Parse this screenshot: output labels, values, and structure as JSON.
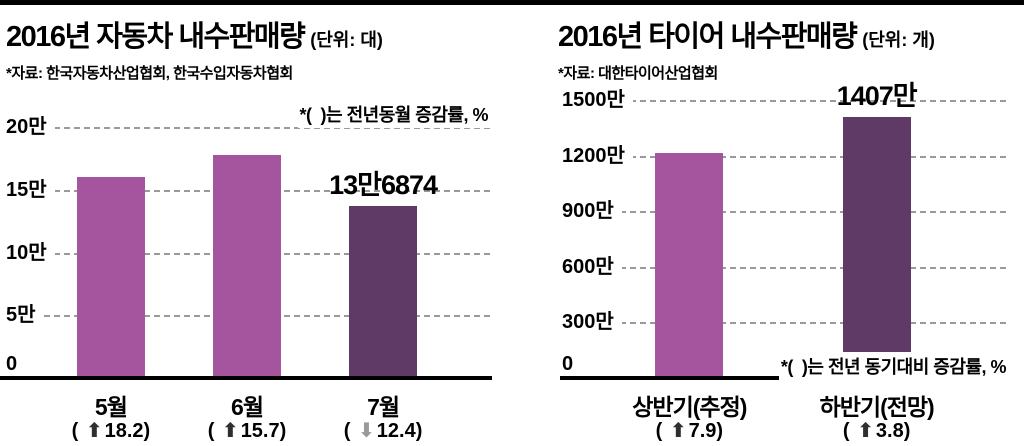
{
  "arrows": {
    "up": "⬆",
    "down": "⬇"
  },
  "colors": {
    "bar_light": "#a4559e",
    "bar_dark": "#603a66",
    "grid_line": "#9a9a9a",
    "axis_line": "#000000",
    "up_arrow": "#2f2f2f",
    "down_arrow": "#9a9a9a"
  },
  "chart_data": [
    {
      "type": "bar",
      "title": "2016년 자동차 내수판매량",
      "unit": "(단위: 대)",
      "source": "*자료: 한국자동차산업협회, 한국수입자동차협회",
      "note": "*(  )는 전년동월 증감률, %",
      "note_placement": "top-right",
      "categories": [
        "5월",
        "6월",
        "7월"
      ],
      "values": [
        160000,
        178000,
        136874
      ],
      "bar_value_labels": [
        "",
        "",
        "13만6874"
      ],
      "bar_colors": [
        "#a4559e",
        "#a4559e",
        "#603a66"
      ],
      "change_labels": [
        {
          "arrow": "up",
          "value": "18.2"
        },
        {
          "arrow": "up",
          "value": "15.7"
        },
        {
          "arrow": "down",
          "value": "12.4"
        }
      ],
      "y_ticks": [
        {
          "value": 200000,
          "label": "20만"
        },
        {
          "value": 150000,
          "label": "15만"
        },
        {
          "value": 100000,
          "label": "10만"
        },
        {
          "value": 50000,
          "label": "5만"
        },
        {
          "value": 0,
          "label": "0"
        }
      ],
      "ylim": [
        0,
        200000
      ],
      "grid": "horizontal-dashed",
      "legend": "none"
    },
    {
      "type": "bar",
      "title": "2016년 타이어 내수판매량",
      "unit": "(단위: 개)",
      "source": "*자료: 대한타이어산업협회",
      "note": "*(  )는 전년 동기대비 증감률, %",
      "note_placement": "bottom-right",
      "categories": [
        "상반기(추정)",
        "하반기(전망)"
      ],
      "values": [
        12150000,
        14070000
      ],
      "bar_value_labels": [
        "",
        "1407만"
      ],
      "bar_colors": [
        "#a4559e",
        "#603a66"
      ],
      "change_labels": [
        {
          "arrow": "up",
          "value": "7.9"
        },
        {
          "arrow": "up",
          "value": "3.8"
        }
      ],
      "y_ticks": [
        {
          "value": 15000000,
          "label": "1500만"
        },
        {
          "value": 12000000,
          "label": "1200만"
        },
        {
          "value": 9000000,
          "label": "900만"
        },
        {
          "value": 6000000,
          "label": "600만"
        },
        {
          "value": 3000000,
          "label": "300만"
        },
        {
          "value": 0,
          "label": "0"
        }
      ],
      "ylim": [
        0,
        15000000
      ],
      "grid": "horizontal-dashed",
      "legend": "none"
    }
  ]
}
